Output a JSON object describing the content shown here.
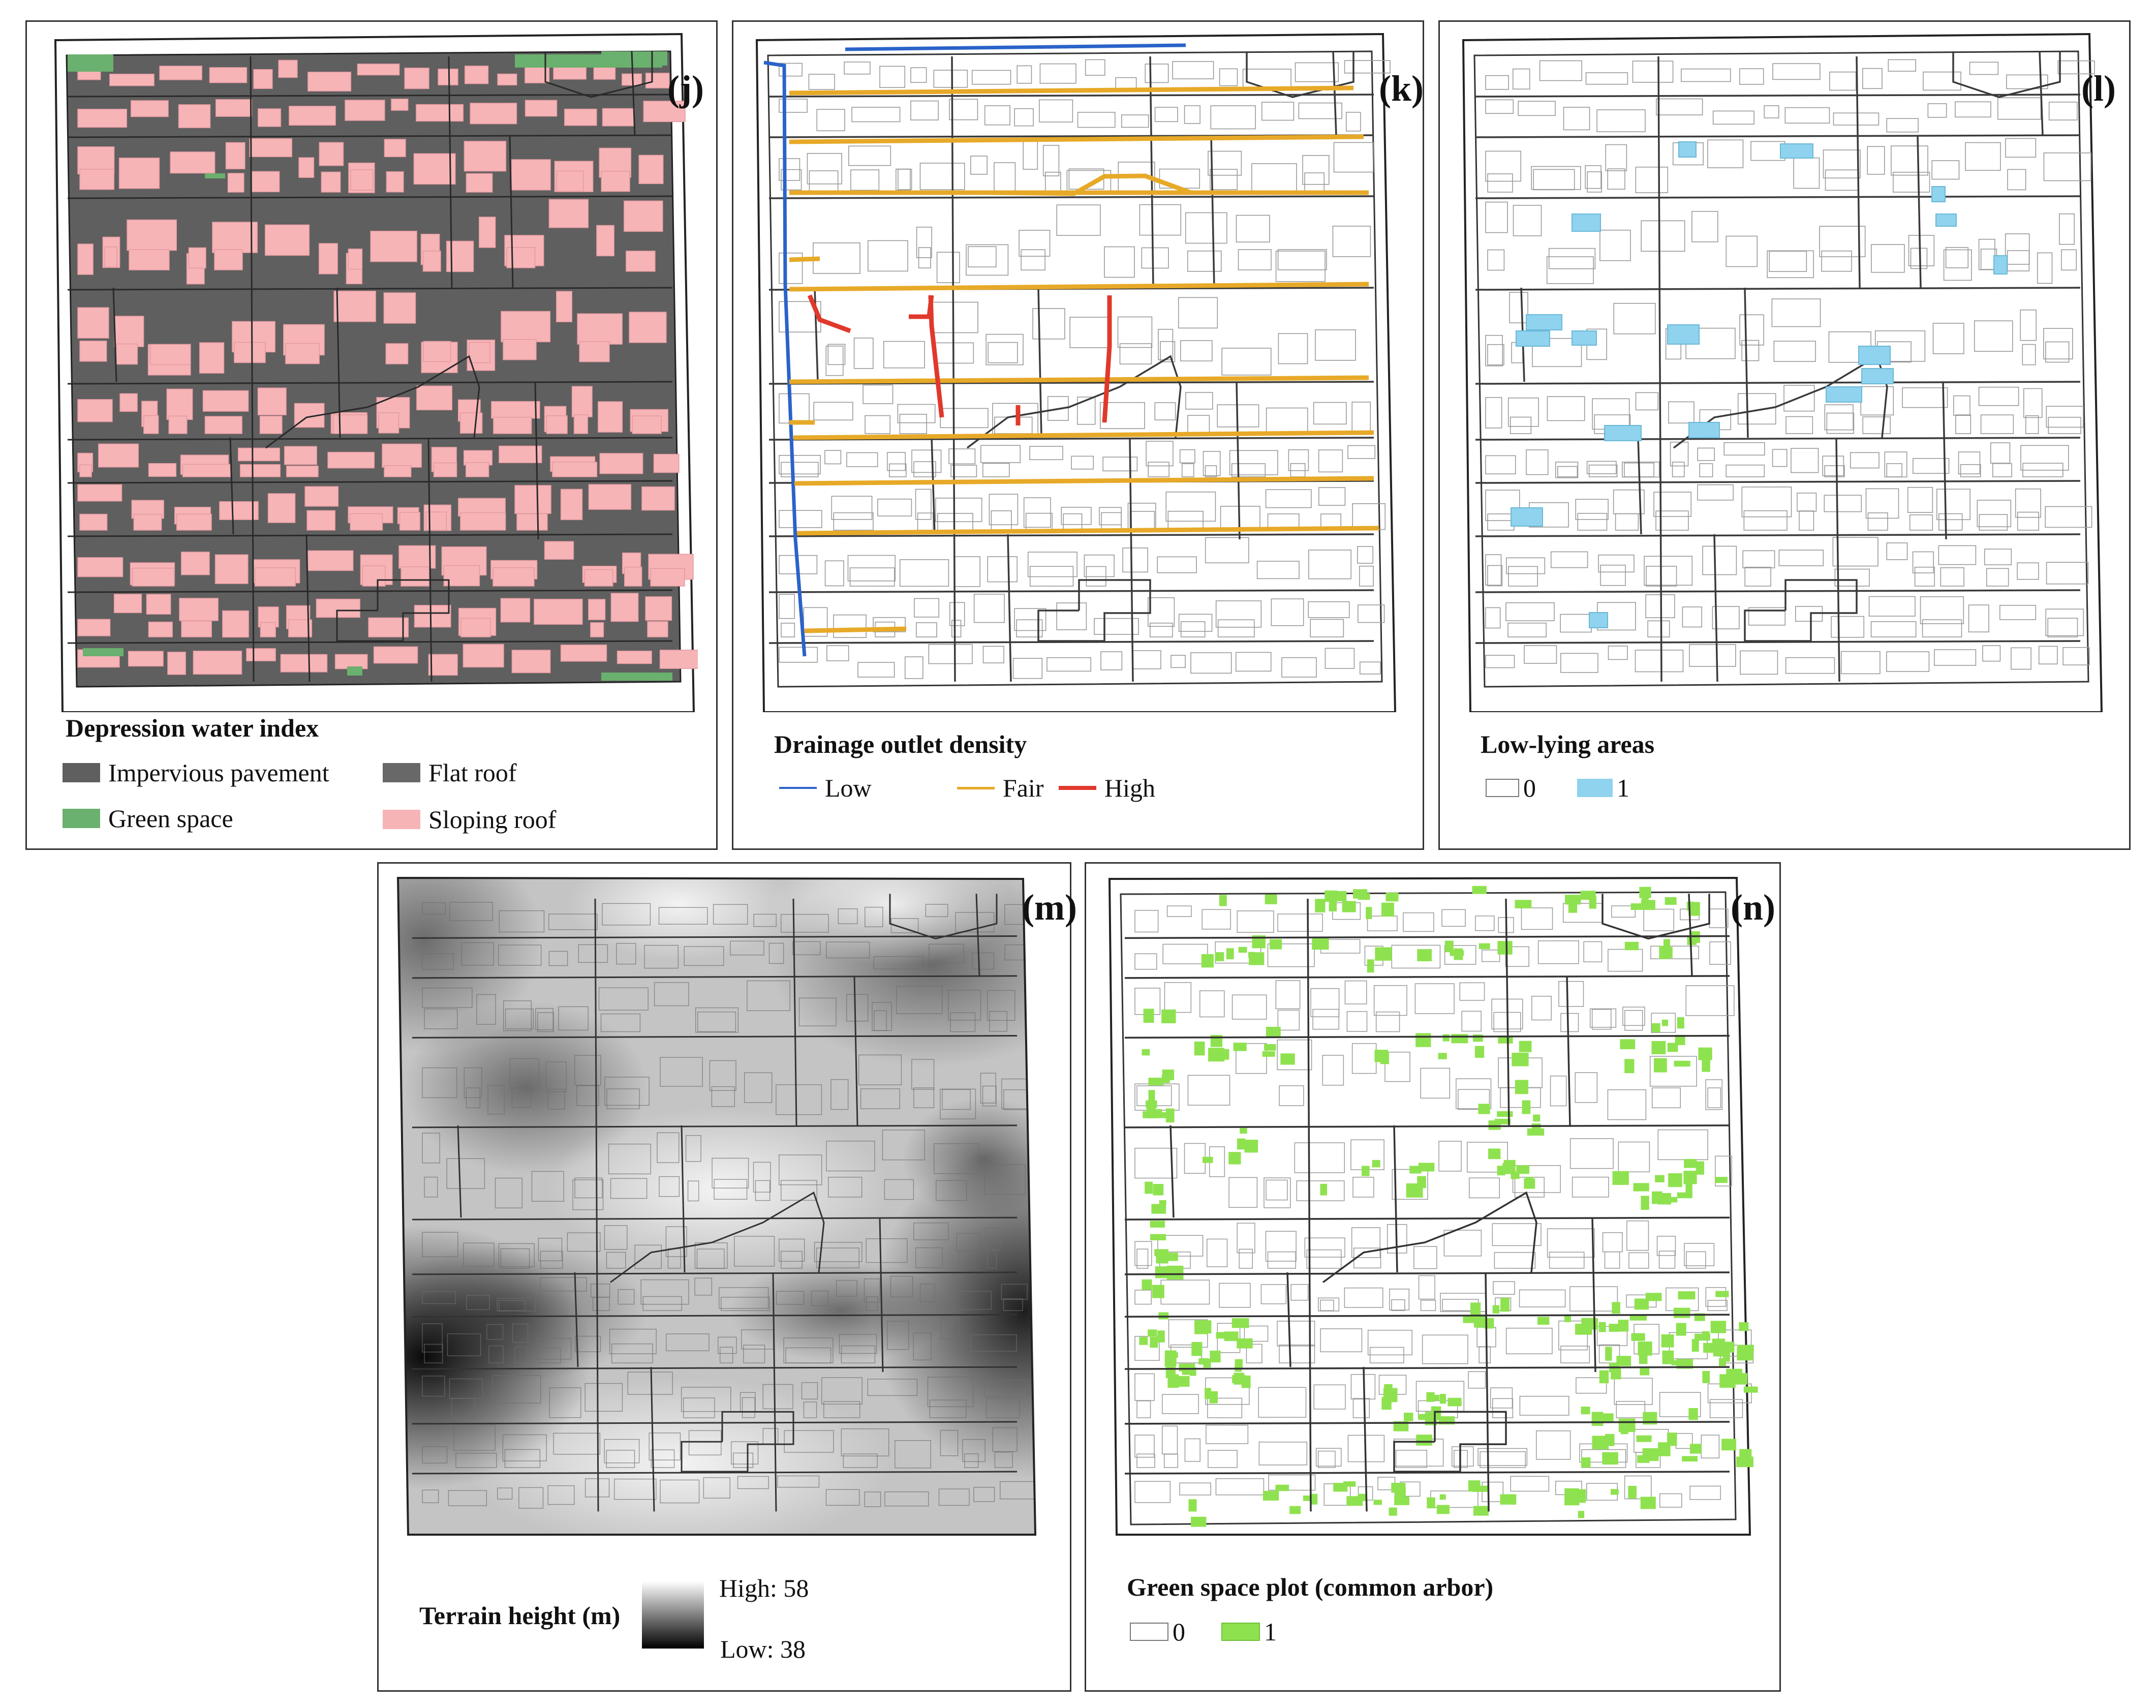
{
  "panels": {
    "j": {
      "tag": "(j)",
      "legend_title": "Depression water index",
      "items": [
        {
          "label": "Impervious pavement",
          "color": "#5f5f5f"
        },
        {
          "label": "Flat roof",
          "color": "#686868"
        },
        {
          "label": "Green space",
          "color": "#6ab06e"
        },
        {
          "label": "Sloping roof",
          "color": "#f6b4b6"
        }
      ]
    },
    "k": {
      "tag": "(k)",
      "legend_title": "Drainage outlet density",
      "items": [
        {
          "label": "Low",
          "color": "#2a63c9"
        },
        {
          "label": "Fair",
          "color": "#e7a928"
        },
        {
          "label": "High",
          "color": "#e0392b"
        }
      ]
    },
    "l": {
      "tag": "(l)",
      "legend_title": "Low-lying areas",
      "items": [
        {
          "label": "0",
          "color": "#ffffff"
        },
        {
          "label": "1",
          "color": "#8fd3ee"
        }
      ]
    },
    "m": {
      "tag": "(m)",
      "legend_title": "Terrain height (m)",
      "high_label": "High: 58",
      "low_label": "Low: 38"
    },
    "n": {
      "tag": "(n)",
      "legend_title": "Green space plot (common arbor)",
      "items": [
        {
          "label": "0",
          "color": "#ffffff"
        },
        {
          "label": "1",
          "color": "#8fe24f"
        }
      ]
    }
  }
}
